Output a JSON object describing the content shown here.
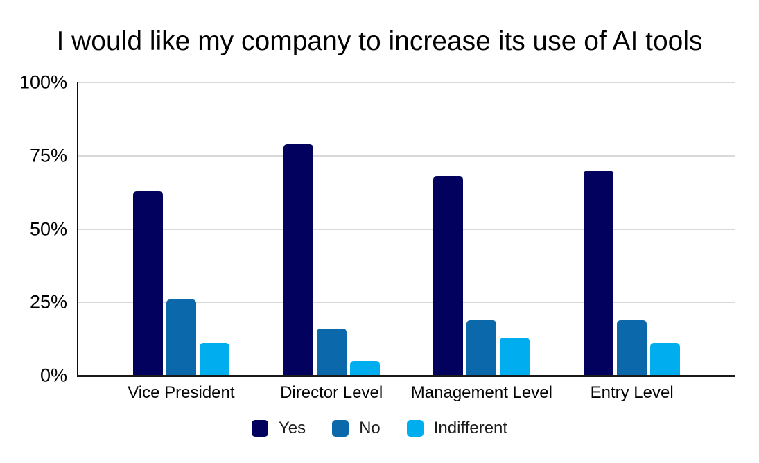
{
  "title": "I would like my company to increase its use of AI tools",
  "chart_data": {
    "type": "bar",
    "title": "I would like my company to increase its use of AI tools",
    "categories": [
      "Vice President",
      "Director Level",
      "Management Level",
      "Entry Level"
    ],
    "series": [
      {
        "name": "Yes",
        "color": "#02025e",
        "values": [
          63,
          79,
          68,
          70
        ]
      },
      {
        "name": "No",
        "color": "#0a68ab",
        "values": [
          26,
          16,
          19,
          19
        ]
      },
      {
        "name": "Indifferent",
        "color": "#00aeef",
        "values": [
          11,
          5,
          13,
          11
        ]
      }
    ],
    "xlabel": "",
    "ylabel": "",
    "ylim": [
      0,
      100
    ],
    "y_ticks": [
      {
        "label": "100%",
        "value": 100
      },
      {
        "label": "75%",
        "value": 75
      },
      {
        "label": "50%",
        "value": 50
      },
      {
        "label": "25%",
        "value": 25
      },
      {
        "label": "0%",
        "value": 0
      }
    ],
    "grid": true,
    "legend_position": "bottom",
    "colors": {
      "gridline": "#d9d9d9",
      "axis": "#1a1a1a",
      "text": "#000000",
      "background": "#ffffff"
    }
  }
}
